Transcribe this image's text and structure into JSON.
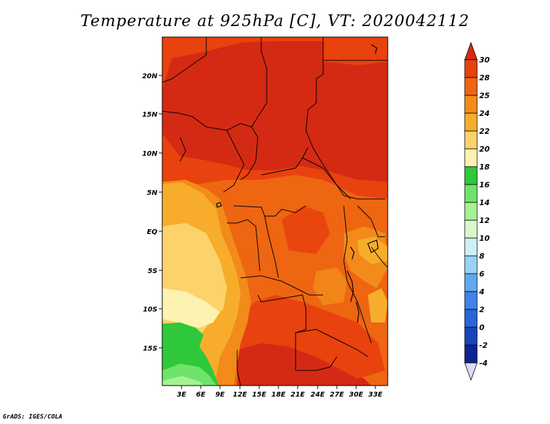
{
  "title": "Temperature at 925hPa [C], VT: 2020042112",
  "footer": "GrADS: IGES/COLA",
  "map": {
    "lat_ticks": [
      "20N",
      "15N",
      "10N",
      "5N",
      "EQ",
      "5S",
      "10S",
      "15S"
    ],
    "lon_ticks": [
      "3E",
      "6E",
      "9E",
      "12E",
      "15E",
      "18E",
      "21E",
      "24E",
      "27E",
      "30E",
      "33E"
    ]
  },
  "colorbar": {
    "levels": [
      "30",
      "28",
      "25",
      "24",
      "22",
      "20",
      "18",
      "16",
      "14",
      "12",
      "10",
      "8",
      "6",
      "4",
      "2",
      "0",
      "-2",
      "-4"
    ],
    "colors": {
      "gt30": "#d42a14",
      "28_30": "#e8420e",
      "25_28": "#ee6512",
      "24_25": "#f28b1a",
      "22_24": "#f7ad2b",
      "20_22": "#fbd36a",
      "18_20": "#fdf2b0",
      "16_18": "#2ec83a",
      "14_16": "#6fe36a",
      "12_14": "#a4f293",
      "10_12": "#d8f8cc",
      "8_10": "#cfeef8",
      "6_8": "#96d3f5",
      "4_6": "#5ea9ef",
      "2_4": "#3f84e6",
      "0_2": "#2766d8",
      "m2_0": "#1844ba",
      "m4_m2": "#0d2590",
      "lt_m4": "#dcdcf8"
    }
  }
}
